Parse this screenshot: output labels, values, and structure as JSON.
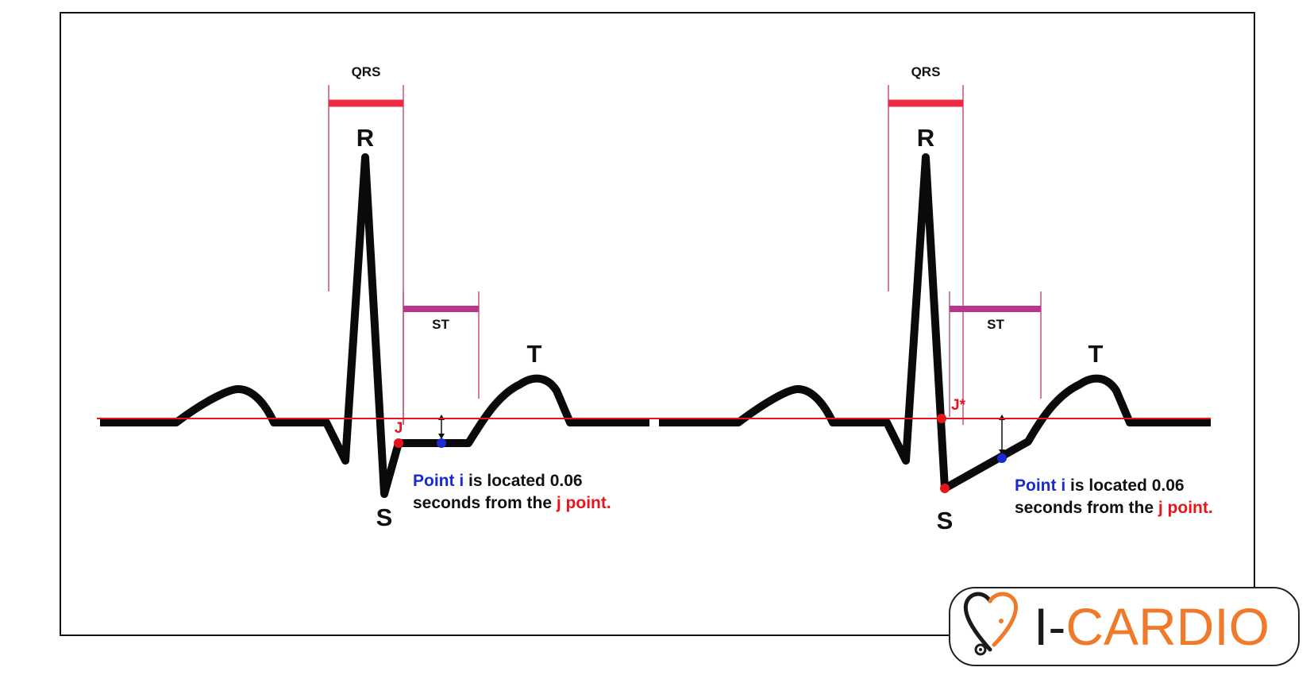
{
  "colors": {
    "trace": "#0a0a0a",
    "baseline": "#e8141c",
    "qrs_bar": "#ee2a43",
    "st_bar": "#b8358c",
    "bracket_line": "#c8507a",
    "j_point": "#e8141c",
    "i_point": "#1a2ad0",
    "note_blue": "#1a2ad0",
    "note_red": "#e8141c",
    "note_dark": "#111111",
    "logo_dark": "#1a1a1a",
    "logo_orange": "#f07a2a",
    "logo_border": "#222222"
  },
  "left_beat": {
    "qrs_label": "QRS",
    "st_label": "ST",
    "r_label": "R",
    "s_label": "S",
    "t_label": "T",
    "j_label": "J",
    "note": {
      "part1_blue": "Point i",
      "part2": " is located 0.06",
      "part3": "seconds from the ",
      "part4_red": "j point."
    }
  },
  "right_beat": {
    "qrs_label": "QRS",
    "st_label": "ST",
    "r_label": "R",
    "s_label": "S",
    "t_label": "T",
    "j_label": "J*",
    "note": {
      "part1_blue": "Point i",
      "part2": " is located 0.06",
      "part3": "seconds from the ",
      "part4_red": "j point."
    }
  },
  "logo": {
    "text_prefix": "I-",
    "text_main": "CARDIO",
    "icon": "stethoscope-heart-icon"
  }
}
